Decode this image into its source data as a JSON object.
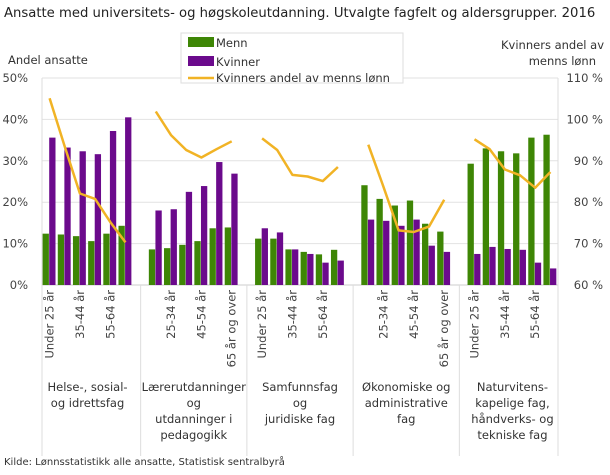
{
  "chart_data": {
    "type": "bar+line",
    "title": "Ansatte med universitets- og høgskoleutdanning. Utvalgte fagfelt og aldersgrupper. 2016",
    "ylabel_left": "Andel ansatte",
    "ylabel_right": [
      "Kvinners andel av",
      "menns lønn"
    ],
    "ylim_left": [
      0,
      50
    ],
    "ylim_right": [
      60,
      110
    ],
    "yticks_left": [
      "0%",
      "10%",
      "20%",
      "30%",
      "40%",
      "50%"
    ],
    "yticks_right": [
      "60 %",
      "70 %",
      "80 %",
      "90 %",
      "100 %",
      "110 %"
    ],
    "grid": true,
    "legend_position": "top-center",
    "age_groups": [
      "Under 25 år",
      "25-34 år",
      "35-44 år",
      "45-54 år",
      "55-64 år",
      "65 år og over"
    ],
    "groups": [
      {
        "label": [
          "Helse-, sosial-",
          "og idrettsfag"
        ],
        "menn": [
          12.4,
          12.2,
          11.8,
          10.6,
          12.4,
          14.3
        ],
        "kvinner": [
          35.6,
          33.2,
          32.3,
          31.6,
          37.2,
          40.5
        ],
        "lonn": [
          105.1,
          93.4,
          82.1,
          80.8,
          75.2,
          70.3
        ]
      },
      {
        "label": [
          "Lærerutdanninger",
          "og",
          "utdanninger i",
          "pedagogikk"
        ],
        "menn": [
          8.6,
          8.9,
          9.7,
          10.6,
          13.7,
          13.9
        ],
        "kvinner": [
          18.0,
          18.3,
          22.5,
          23.9,
          29.7,
          26.9
        ],
        "lonn": [
          101.9,
          96.2,
          92.6,
          90.8,
          92.8,
          94.7
        ]
      },
      {
        "label": [
          "Samfunnsfag",
          "og",
          "juridiske fag"
        ],
        "menn": [
          11.2,
          11.2,
          8.6,
          8.0,
          7.4,
          8.5
        ],
        "kvinner": [
          13.7,
          12.7,
          8.6,
          7.5,
          5.4,
          5.9
        ],
        "lonn": [
          95.4,
          92.6,
          86.6,
          86.2,
          85.1,
          88.5
        ]
      },
      {
        "label": [
          "Økonomiske og",
          "administrative",
          "fag"
        ],
        "menn": [
          24.1,
          20.8,
          19.2,
          20.4,
          14.8,
          12.9
        ],
        "kvinner": [
          15.8,
          15.5,
          14.3,
          15.8,
          9.5,
          8.0
        ],
        "lonn": [
          93.9,
          83.7,
          73.2,
          72.8,
          74.1,
          80.6
        ]
      },
      {
        "label": [
          "Naturvitens-",
          "kapelige fag,",
          "håndverks- og",
          "tekniske fag"
        ],
        "menn": [
          29.3,
          33.0,
          32.3,
          31.8,
          35.6,
          36.3
        ],
        "kvinner": [
          7.5,
          9.2,
          8.7,
          8.5,
          5.4,
          4.0
        ],
        "lonn": [
          95.2,
          92.8,
          87.9,
          86.5,
          83.5,
          87.3
        ]
      }
    ],
    "series": [
      {
        "name": "Menn",
        "axis": "left",
        "type": "bar",
        "color": "#3e8605"
      },
      {
        "name": "Kvinner",
        "axis": "left",
        "type": "bar",
        "color": "#6b0a8c"
      },
      {
        "name": "Kvinners andel av menns lønn",
        "axis": "right",
        "type": "line",
        "color": "#f1b325"
      }
    ],
    "source": "Kilde: Lønnsstatistikk alle ansatte, Statistisk sentralbyrå"
  }
}
